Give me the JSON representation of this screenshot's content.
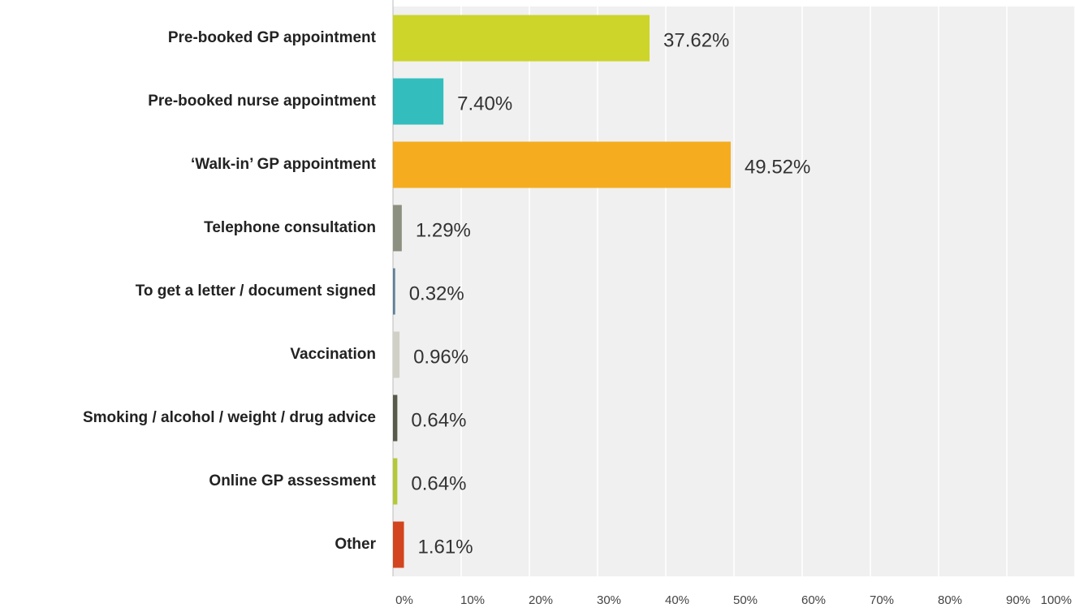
{
  "chart_data": {
    "type": "bar",
    "orientation": "horizontal",
    "categories": [
      "Pre-booked GP appointment",
      "Pre-booked nurse appointment",
      "‘Walk-in’ GP appointment",
      "Telephone consultation",
      "To get a letter / document signed",
      "Vaccination",
      "Smoking / alcohol / weight / drug advice",
      "Online GP assessment",
      "Other"
    ],
    "values": [
      37.62,
      7.4,
      49.52,
      1.29,
      0.32,
      0.96,
      0.64,
      0.64,
      1.61
    ],
    "value_labels": [
      "37.62%",
      "7.40%",
      "49.52%",
      "1.29%",
      "0.32%",
      "0.96%",
      "0.64%",
      "0.64%",
      "1.61%"
    ],
    "colors": [
      "#cdd42a",
      "#33bdbd",
      "#f5ad1f",
      "#8c9080",
      "#5f7f98",
      "#d1d0c6",
      "#5a5a4a",
      "#b5c936",
      "#d3451e"
    ],
    "xlim": [
      0,
      100
    ],
    "xticks": [
      {
        "value": 0,
        "label": "0%"
      },
      {
        "value": 10,
        "label": "10%"
      },
      {
        "value": 20,
        "label": "20%"
      },
      {
        "value": 30,
        "label": "30%"
      },
      {
        "value": 40,
        "label": "40%"
      },
      {
        "value": 50,
        "label": "50%"
      },
      {
        "value": 60,
        "label": "60%"
      },
      {
        "value": 70,
        "label": "70%"
      },
      {
        "value": 80,
        "label": "80%"
      },
      {
        "value": 90,
        "label": "90%"
      },
      {
        "value": 100,
        "label": "100%"
      }
    ],
    "grid": true
  }
}
